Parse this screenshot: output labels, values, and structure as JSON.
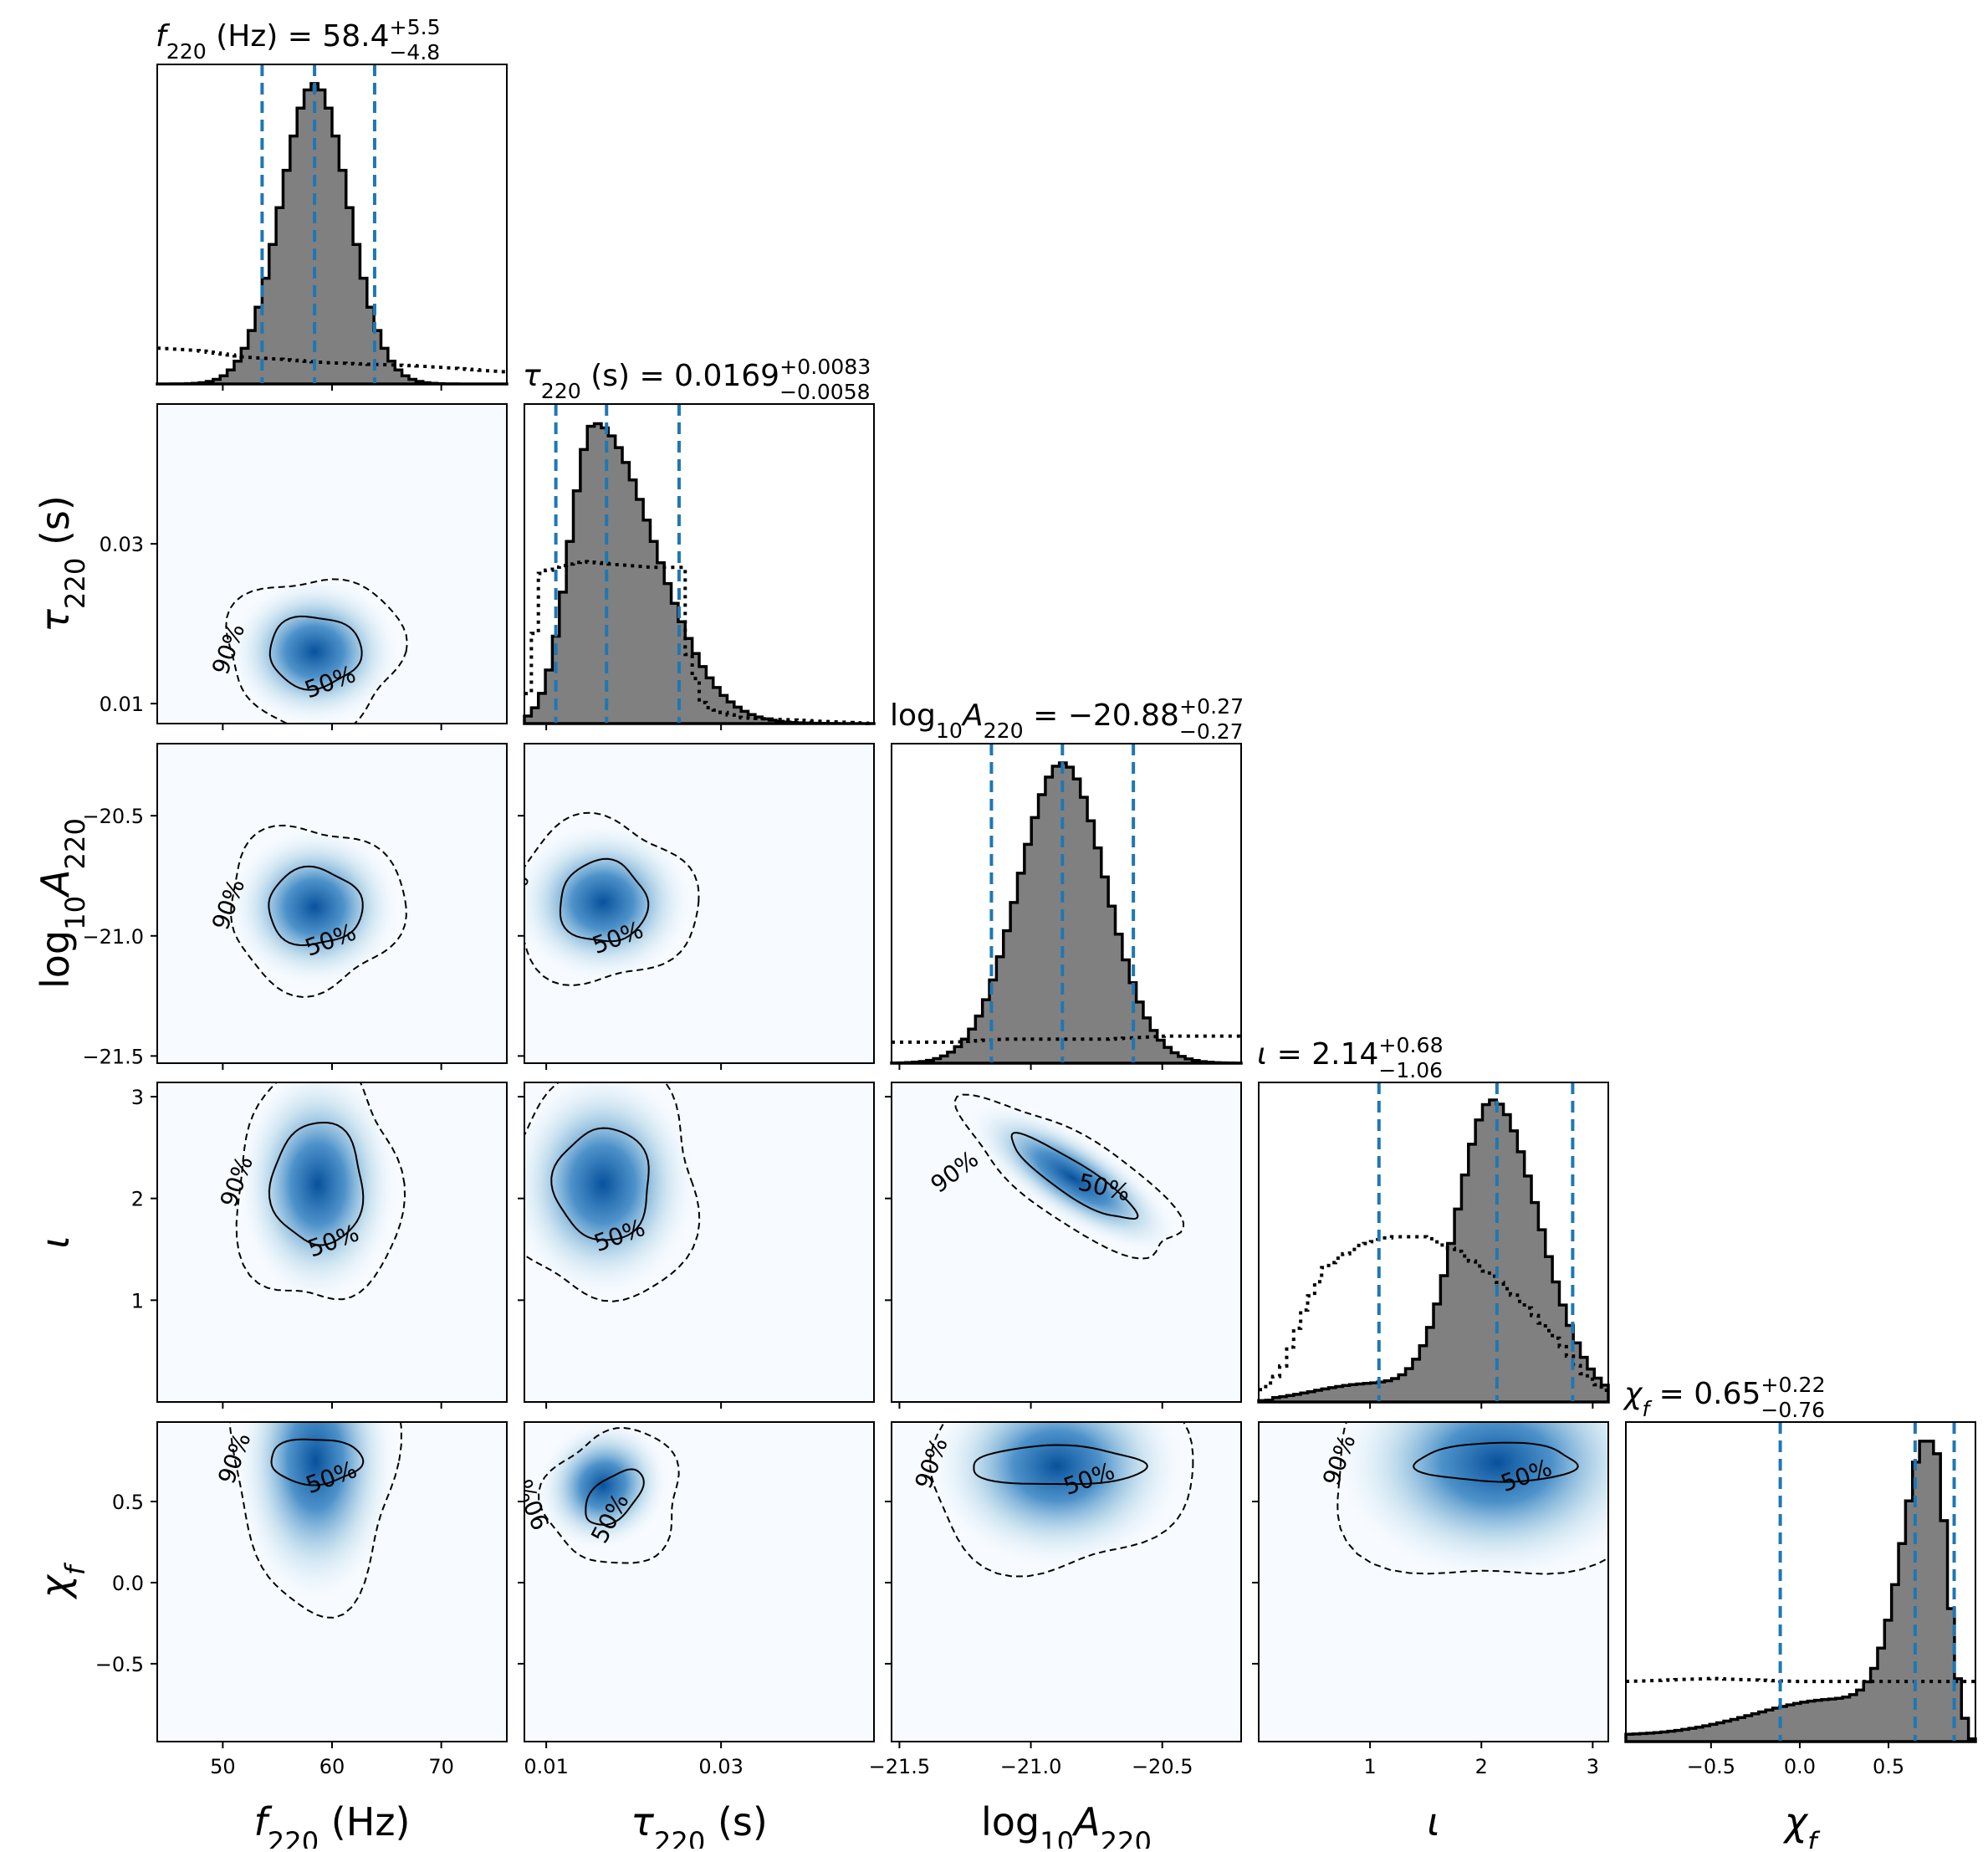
{
  "chart_data": {
    "type": "corner",
    "parameters": [
      {
        "key": "f220",
        "label_main": "f",
        "label_sub": "220",
        "label_unit": " (Hz)",
        "range": [
          44,
          76
        ],
        "ticks": [
          50,
          60,
          70
        ],
        "tick_labels": [
          "50",
          "60",
          "70"
        ],
        "median": 58.4,
        "upper": 5.5,
        "lower": 4.8,
        "title": "= 58.4",
        "title_sup": "+5.5",
        "title_sub": "−4.8",
        "quantiles": [
          53.6,
          58.4,
          63.9
        ],
        "posterior_sd": 3.1,
        "posterior_shape": "normal",
        "prior_curve": [
          [
            44,
            0.12
          ],
          [
            48,
            0.11
          ],
          [
            52,
            0.09
          ],
          [
            56,
            0.08
          ],
          [
            60,
            0.07
          ],
          [
            64,
            0.065
          ],
          [
            68,
            0.06
          ],
          [
            72,
            0.05
          ],
          [
            76,
            0.04
          ]
        ]
      },
      {
        "key": "tau220",
        "label_main": "τ",
        "label_sub": "220",
        "label_unit": " (s)",
        "range": [
          0.0075,
          0.0475
        ],
        "ticks": [
          0.01,
          0.03
        ],
        "tick_labels": [
          "0.01",
          "0.03"
        ],
        "median": 0.0169,
        "title": "= 0.0169",
        "title_sup": "+0.0083",
        "title_sub": "−0.0058",
        "quantiles": [
          0.0111,
          0.0169,
          0.0252
        ],
        "posterior_peak": 0.0155,
        "posterior_shape": "skewed",
        "prior_curve": [
          [
            0.0075,
            0.0
          ],
          [
            0.0095,
            0.5
          ],
          [
            0.011,
            0.52
          ],
          [
            0.014,
            0.54
          ],
          [
            0.018,
            0.53
          ],
          [
            0.022,
            0.52
          ],
          [
            0.0258,
            0.52
          ],
          [
            0.026,
            0.26
          ],
          [
            0.028,
            0.06
          ],
          [
            0.032,
            0.02
          ],
          [
            0.0475,
            0.0
          ]
        ]
      },
      {
        "key": "logA220",
        "label_main": "log",
        "label_sub": "10",
        "label_tail": "A",
        "label_tail_sub": "220",
        "label_unit": "",
        "range": [
          -21.53,
          -20.2
        ],
        "ticks": [
          -21.5,
          -21.0,
          -20.5
        ],
        "tick_labels": [
          "−21.5",
          "−21.0",
          "−20.5"
        ],
        "median": -20.88,
        "title": "= −20.88",
        "title_sup": "+0.27",
        "title_sub": "−0.27",
        "quantiles": [
          -21.15,
          -20.88,
          -20.61
        ],
        "posterior_sd": 0.165,
        "posterior_shape": "normal",
        "prior_curve": [
          [
            -21.53,
            0.07
          ],
          [
            -21.3,
            0.07
          ],
          [
            -21.1,
            0.08
          ],
          [
            -20.9,
            0.08
          ],
          [
            -20.7,
            0.08
          ],
          [
            -20.5,
            0.09
          ],
          [
            -20.2,
            0.09
          ]
        ]
      },
      {
        "key": "iota",
        "label_main": "ι",
        "label_sub": "",
        "label_unit": "",
        "range": [
          0.0,
          3.14
        ],
        "ticks": [
          1,
          2,
          3
        ],
        "tick_labels": [
          "1",
          "2",
          "3"
        ],
        "median": 2.14,
        "title": "= 2.14",
        "title_sup": "+0.68",
        "title_sub": "−1.06",
        "quantiles": [
          1.08,
          2.14,
          2.82
        ],
        "posterior_peak": 2.1,
        "posterior_shape": "iota",
        "prior_curve": [
          [
            0.0,
            0.03
          ],
          [
            0.2,
            0.1
          ],
          [
            0.4,
            0.3
          ],
          [
            0.6,
            0.45
          ],
          [
            0.9,
            0.52
          ],
          [
            1.2,
            0.55
          ],
          [
            1.5,
            0.55
          ],
          [
            1.8,
            0.5
          ],
          [
            2.1,
            0.42
          ],
          [
            2.4,
            0.32
          ],
          [
            2.7,
            0.2
          ],
          [
            2.9,
            0.1
          ],
          [
            3.14,
            0.03
          ]
        ]
      },
      {
        "key": "chif",
        "label_main": "χ",
        "label_sub": "f",
        "label_unit": "",
        "range": [
          -0.98,
          0.99
        ],
        "ticks": [
          -0.5,
          0.0,
          0.5
        ],
        "tick_labels": [
          "−0.5",
          "0.0",
          "0.5"
        ],
        "median": 0.65,
        "title": "= 0.65",
        "title_sup": "+0.22",
        "title_sub": "−0.76",
        "quantiles": [
          -0.11,
          0.65,
          0.87
        ],
        "posterior_peak": 0.75,
        "posterior_shape": "chi",
        "prior_curve": [
          [
            -0.98,
            0.2
          ],
          [
            -0.5,
            0.21
          ],
          [
            0.0,
            0.2
          ],
          [
            0.5,
            0.2
          ],
          [
            0.99,
            0.2
          ]
        ]
      }
    ],
    "contours": [
      {
        "row": 1,
        "col": 0,
        "cx": 58.4,
        "cy": 0.0165,
        "r50": [
          4.2,
          0.0045
        ],
        "r90": [
          8.0,
          0.0095
        ],
        "peak": [
          58.4,
          0.0165
        ]
      },
      {
        "row": 2,
        "col": 0,
        "cx": 58.4,
        "cy": -20.88,
        "r50": [
          4.3,
          0.16
        ],
        "r90": [
          8.0,
          0.34
        ],
        "peak": [
          58.4,
          -20.88
        ]
      },
      {
        "row": 2,
        "col": 1,
        "cx": 0.0165,
        "cy": -20.86,
        "r50": [
          0.005,
          0.17
        ],
        "r90": [
          0.0105,
          0.34
        ],
        "peak": [
          0.0165,
          -20.86
        ]
      },
      {
        "row": 3,
        "col": 0,
        "cx": 58.7,
        "cy": 2.14,
        "r50": [
          4.2,
          0.6
        ],
        "r90": [
          7.5,
          1.2
        ],
        "peak": [
          58.7,
          2.14
        ]
      },
      {
        "row": 3,
        "col": 1,
        "cx": 0.0165,
        "cy": 2.14,
        "r50": [
          0.0055,
          0.55
        ],
        "r90": [
          0.011,
          1.15
        ],
        "peak": [
          0.0165,
          2.14
        ]
      },
      {
        "row": 3,
        "col": 2,
        "cx": -20.84,
        "cy": 2.2,
        "r50": [
          0.28,
          0.16
        ],
        "r90": [
          0.48,
          0.42
        ],
        "peak": [
          -20.84,
          2.2
        ]
      },
      {
        "row": 4,
        "col": 0,
        "cx": 58.5,
        "cy": 0.75,
        "r50": [
          4.2,
          0.14
        ],
        "r90": [
          7.5,
          0.9
        ],
        "peak": [
          58.5,
          0.75
        ]
      },
      {
        "row": 4,
        "col": 1,
        "cx": 0.0165,
        "cy": 0.5,
        "r50": [
          0.004,
          0.12
        ],
        "r90": [
          0.008,
          0.4
        ],
        "peak": [
          0.0165,
          0.6
        ]
      },
      {
        "row": 4,
        "col": 2,
        "cx": -20.9,
        "cy": 0.72,
        "r50": [
          0.33,
          0.12
        ],
        "r90": [
          0.5,
          0.65
        ],
        "peak": [
          -20.9,
          0.72
        ]
      },
      {
        "row": 4,
        "col": 3,
        "cx": 2.14,
        "cy": 0.74,
        "r50": [
          0.72,
          0.12
        ],
        "r90": [
          1.5,
          0.75
        ],
        "peak": [
          2.14,
          0.74
        ]
      }
    ],
    "contour_labels": [
      "50%",
      "90%"
    ],
    "colors": {
      "hist_fill": "#808080",
      "hist_edge": "#000000",
      "quantile_line": "#1f77b4",
      "density": "#08519c"
    }
  }
}
